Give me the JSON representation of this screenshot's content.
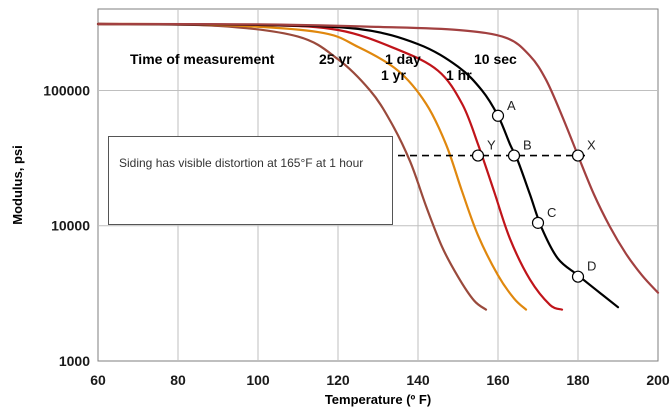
{
  "chart_data": {
    "type": "line",
    "xlabel": "Temperature (º F)",
    "ylabel": "Modulus, psi",
    "xlim": [
      60,
      200
    ],
    "ylim": [
      1000,
      400000
    ],
    "y_scale": "log",
    "x_ticks": [
      "60",
      "80",
      "100",
      "120",
      "140",
      "160",
      "180",
      "200"
    ],
    "y_ticks": [
      {
        "value": 1000,
        "label": "1000"
      },
      {
        "value": 10000,
        "label": "10000"
      },
      {
        "value": 100000,
        "label": "100000"
      }
    ],
    "grid": "both",
    "annotation_title": "Time of measurement",
    "series": [
      {
        "name": "25 yr",
        "color": "#9a4a3c",
        "points": [
          [
            60,
            310000
          ],
          [
            90,
            300000
          ],
          [
            110,
            250000
          ],
          [
            120,
            170000
          ],
          [
            128,
            100000
          ],
          [
            133,
            60000
          ],
          [
            138,
            30000
          ],
          [
            142,
            14000
          ],
          [
            146,
            7000
          ],
          [
            150,
            4200
          ],
          [
            154,
            2800
          ],
          [
            157,
            2400
          ]
        ]
      },
      {
        "name": "1 yr",
        "color": "#e0880e",
        "points": [
          [
            60,
            310000
          ],
          [
            90,
            305000
          ],
          [
            115,
            270000
          ],
          [
            125,
            210000
          ],
          [
            135,
            140000
          ],
          [
            142,
            80000
          ],
          [
            147,
            40000
          ],
          [
            151,
            18000
          ],
          [
            155,
            8500
          ],
          [
            160,
            4300
          ],
          [
            164,
            2900
          ],
          [
            167,
            2400
          ]
        ]
      },
      {
        "name": "1 day",
        "color": "#c0141a",
        "points": [
          [
            60,
            310000
          ],
          [
            100,
            305000
          ],
          [
            120,
            280000
          ],
          [
            135,
            200000
          ],
          [
            145,
            140000
          ],
          [
            151,
            80000
          ],
          [
            155,
            40000
          ],
          [
            159,
            18000
          ],
          [
            163,
            8000
          ],
          [
            168,
            4000
          ],
          [
            173,
            2600
          ],
          [
            176,
            2400
          ]
        ]
      },
      {
        "name": "1 hr",
        "color": "#000000",
        "points": [
          [
            60,
            310000
          ],
          [
            100,
            305000
          ],
          [
            125,
            285000
          ],
          [
            140,
            220000
          ],
          [
            150,
            150000
          ],
          [
            156,
            100000
          ],
          [
            160,
            65000
          ],
          [
            163,
            40000
          ],
          [
            165,
            30000
          ],
          [
            168,
            17000
          ],
          [
            171,
            9500
          ],
          [
            175,
            5700
          ],
          [
            180,
            4300
          ],
          [
            186,
            3100
          ],
          [
            190,
            2500
          ]
        ]
      },
      {
        "name": "10 sec",
        "color": "#a24040",
        "points": [
          [
            60,
            310000
          ],
          [
            100,
            308000
          ],
          [
            130,
            295000
          ],
          [
            150,
            280000
          ],
          [
            162,
            245000
          ],
          [
            168,
            180000
          ],
          [
            172,
            120000
          ],
          [
            176,
            65000
          ],
          [
            180,
            33000
          ],
          [
            184,
            17000
          ],
          [
            188,
            9800
          ],
          [
            192,
            6200
          ],
          [
            196,
            4300
          ],
          [
            200,
            3200
          ]
        ]
      }
    ],
    "reference_line": {
      "y": 33000,
      "x_start": 135,
      "x_end": 183,
      "style": "dashed"
    },
    "points": [
      {
        "label": "A",
        "x": 160,
        "y": 65000
      },
      {
        "label": "B",
        "x": 164,
        "y": 33000
      },
      {
        "label": "C",
        "x": 170,
        "y": 10500
      },
      {
        "label": "D",
        "x": 180,
        "y": 4200
      },
      {
        "label": "X",
        "x": 180,
        "y": 33000
      },
      {
        "label": "Y",
        "x": 155,
        "y": 33000
      }
    ],
    "note": "Siding has visible distortion at 165°F at 1 hour"
  }
}
